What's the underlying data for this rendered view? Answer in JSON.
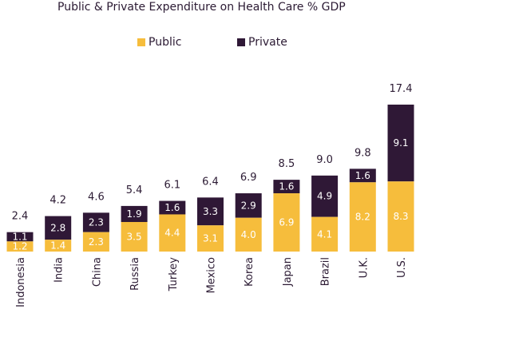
{
  "chart_data": {
    "type": "bar",
    "stacked": true,
    "title": "Public & Private Expenditure  on Health Care % GDP",
    "categories": [
      "Indonesia",
      "India",
      "China",
      "Russia",
      "Turkey",
      "Mexico",
      "Korea",
      "Japan",
      "Brazil",
      "U.K.",
      "U.S."
    ],
    "series": [
      {
        "name": "Public",
        "color": "#f6bd3c",
        "values": [
          1.2,
          1.4,
          2.3,
          3.5,
          4.4,
          3.1,
          4.0,
          6.9,
          4.1,
          8.2,
          8.3
        ],
        "labels": [
          "1.2",
          "1.4",
          "2.3",
          "3.5",
          "4.4",
          "3.1",
          "4.0",
          "6.9",
          "4.1",
          "8.2",
          "8.3"
        ]
      },
      {
        "name": "Private",
        "color": "#2f1836",
        "values": [
          1.1,
          2.8,
          2.3,
          1.9,
          1.6,
          3.3,
          2.9,
          1.6,
          4.9,
          1.6,
          9.1
        ],
        "labels": [
          "1.1",
          "2.8",
          "2.3",
          "1.9",
          "1.6",
          "3.3",
          "2.9",
          "1.6",
          "4.9",
          "1.6",
          "9.1"
        ]
      }
    ],
    "totals": [
      "2.4",
      "4.2",
      "4.6",
      "5.4",
      "6.1",
      "6.4",
      "6.9",
      "8.5",
      "9.0",
      "9.8",
      "17.4"
    ],
    "ylim": [
      0,
      17.4
    ],
    "legend_position": "top-center",
    "grid": false
  }
}
